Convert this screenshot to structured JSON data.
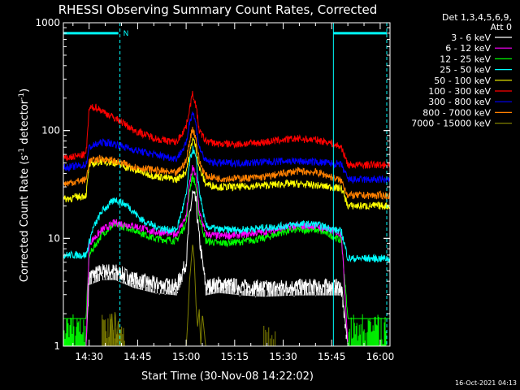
{
  "chart_data": {
    "type": "line",
    "title": "RHESSI Observing Summary Count Rates, Corrected",
    "xlabel": "Start Time (30-Nov-08 14:22:02)",
    "ylabel": "Corrected Count Rate (s",
    "ylabel_sup1": "-1",
    "ylabel_mid": " detector",
    "ylabel_sup2": "-1",
    "ylabel_end": ")",
    "x_ticks": [
      "14:30",
      "14:45",
      "15:00",
      "15:15",
      "15:30",
      "15:45",
      "16:00"
    ],
    "y_ticks": [
      "1",
      "10",
      "100",
      "1000"
    ],
    "y_scale": "log",
    "ylim": [
      1,
      1000
    ],
    "xlim_minutes_after_start": [
      0,
      101
    ],
    "legend_header": [
      "Det 1,3,4,5,6,9,",
      "Att 0"
    ],
    "legend_placement": "top-right",
    "marker_label": "N",
    "timestamp": "16-Oct-2021 04:13",
    "series": [
      {
        "name": "3 - 6 keV",
        "color": "#ffffff",
        "x": [
          3,
          7,
          8,
          12,
          16,
          22,
          28,
          35,
          38,
          39,
          40,
          41,
          42,
          44,
          48,
          55,
          62,
          72,
          82,
          86,
          88
        ],
        "y": [
          1,
          1,
          4.5,
          5.0,
          5.0,
          4.2,
          3.8,
          3.6,
          6,
          16,
          26,
          22,
          10,
          3.6,
          3.8,
          3.6,
          3.5,
          3.6,
          3.6,
          3.6,
          1
        ]
      },
      {
        "name": "6 - 12 keV",
        "color": "#ff00ff",
        "x": [
          3,
          7,
          8,
          12,
          16,
          22,
          28,
          35,
          38,
          39,
          40,
          41,
          42,
          44,
          48,
          55,
          62,
          68,
          72,
          78,
          82,
          86,
          88
        ],
        "y": [
          1,
          1,
          9,
          12,
          14,
          13,
          11.5,
          11,
          16,
          32,
          45,
          38,
          18,
          11,
          10.5,
          10.8,
          11.5,
          12.5,
          13,
          13,
          12,
          11,
          1
        ]
      },
      {
        "name": "12 - 25 keV",
        "color": "#00ff00",
        "x": [
          0,
          7,
          8,
          12,
          16,
          22,
          28,
          35,
          38,
          39,
          40,
          41,
          42,
          44,
          48,
          55,
          62,
          68,
          72,
          78,
          82,
          86,
          88,
          101
        ],
        "y": [
          1.8,
          1.8,
          7,
          11,
          13.5,
          12,
          10,
          9.5,
          14,
          28,
          38,
          30,
          16,
          9.5,
          9,
          9.3,
          10,
          11.5,
          12,
          12,
          11,
          9.5,
          1.8,
          1.8
        ]
      },
      {
        "name": "25 - 50 keV",
        "color": "#00ffff",
        "x": [
          0,
          7,
          9,
          12,
          16,
          20,
          24,
          28,
          32,
          35,
          38,
          39,
          40,
          41,
          42,
          44,
          48,
          55,
          62,
          68,
          72,
          78,
          82,
          86,
          88,
          101
        ],
        "y": [
          7,
          7,
          12,
          18,
          23,
          20,
          15,
          13,
          12,
          12,
          25,
          50,
          68,
          55,
          28,
          13,
          12,
          12,
          12.5,
          13,
          13.5,
          13.5,
          12.5,
          11.5,
          6.5,
          6.5
        ]
      },
      {
        "name": "50 - 100 keV",
        "color": "#ffff00",
        "x": [
          0,
          7,
          8,
          12,
          16,
          22,
          28,
          35,
          38,
          39,
          40,
          41,
          42,
          44,
          48,
          55,
          62,
          68,
          72,
          78,
          82,
          86,
          88,
          101
        ],
        "y": [
          23,
          25,
          48,
          52,
          50,
          43,
          38,
          35,
          42,
          60,
          85,
          70,
          45,
          32,
          30,
          30,
          31,
          32,
          32,
          31,
          30,
          29,
          20,
          20
        ]
      },
      {
        "name": "100 - 300 keV",
        "color": "#ff0000",
        "x": [
          0,
          7,
          8,
          10,
          14,
          18,
          22,
          26,
          30,
          35,
          38,
          39,
          40,
          41,
          42,
          44,
          48,
          55,
          62,
          68,
          72,
          78,
          82,
          86,
          88,
          101
        ],
        "y": [
          55,
          60,
          160,
          165,
          140,
          120,
          100,
          90,
          82,
          78,
          110,
          160,
          220,
          170,
          100,
          80,
          75,
          75,
          78,
          82,
          84,
          82,
          78,
          70,
          48,
          48
        ]
      },
      {
        "name": "300 - 800 keV",
        "color": "#0000ff",
        "x": [
          0,
          7,
          8,
          12,
          16,
          22,
          28,
          35,
          38,
          39,
          40,
          41,
          42,
          44,
          48,
          55,
          62,
          68,
          72,
          78,
          82,
          86,
          88,
          101
        ],
        "y": [
          45,
          48,
          70,
          78,
          75,
          66,
          60,
          55,
          75,
          120,
          150,
          115,
          70,
          52,
          50,
          50,
          51,
          52,
          52,
          51,
          50,
          48,
          35,
          35
        ]
      },
      {
        "name": "800 - 7000 keV",
        "color": "#ff8000",
        "x": [
          0,
          7,
          8,
          12,
          16,
          22,
          28,
          35,
          38,
          39,
          40,
          41,
          42,
          44,
          48,
          55,
          62,
          68,
          72,
          78,
          82,
          86,
          88,
          101
        ],
        "y": [
          32,
          35,
          52,
          55,
          52,
          46,
          43,
          40,
          52,
          80,
          105,
          85,
          52,
          38,
          36,
          36,
          37,
          40,
          42,
          41,
          38,
          34,
          25,
          25
        ]
      },
      {
        "name": "7000 - 15000 keV",
        "color": "#808000",
        "x": [
          0,
          14,
          15,
          15.5,
          16,
          16.5,
          17,
          17.5,
          18,
          38,
          38.5,
          39,
          40,
          40.5,
          41,
          41.5,
          42,
          42.5,
          43,
          44,
          101
        ],
        "y": [
          1,
          1,
          2.0,
          1,
          2.2,
          1,
          1.8,
          1,
          1,
          1,
          1.8,
          4,
          9,
          6,
          2.5,
          1.5,
          2.2,
          1,
          2.0,
          1,
          1
        ]
      }
    ]
  }
}
